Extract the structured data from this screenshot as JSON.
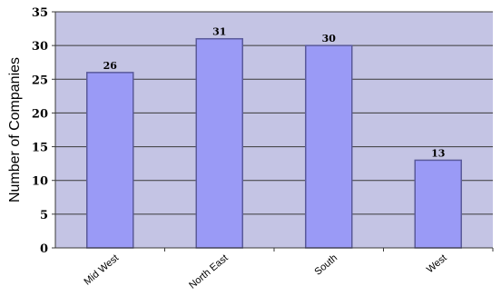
{
  "chart_data": {
    "type": "bar",
    "title": "",
    "xlabel": "",
    "ylabel": "Number of Companies",
    "categories": [
      "Mid West",
      "North East",
      "South",
      "West"
    ],
    "values": [
      26,
      31,
      30,
      13
    ],
    "data_labels": [
      "26",
      "31",
      "30",
      "13"
    ],
    "ylim": [
      0,
      35
    ],
    "yticks": [
      "0",
      "5",
      "10",
      "15",
      "20",
      "25",
      "30",
      "35"
    ],
    "grid": true,
    "legend": "none",
    "colors": {
      "plot_background": "#c4c4e4",
      "bar_fill": "#9a9af6",
      "bar_stroke": "#5a5a9a",
      "gridline": "#3a3a3a",
      "axis": "#3a3a3a"
    }
  }
}
